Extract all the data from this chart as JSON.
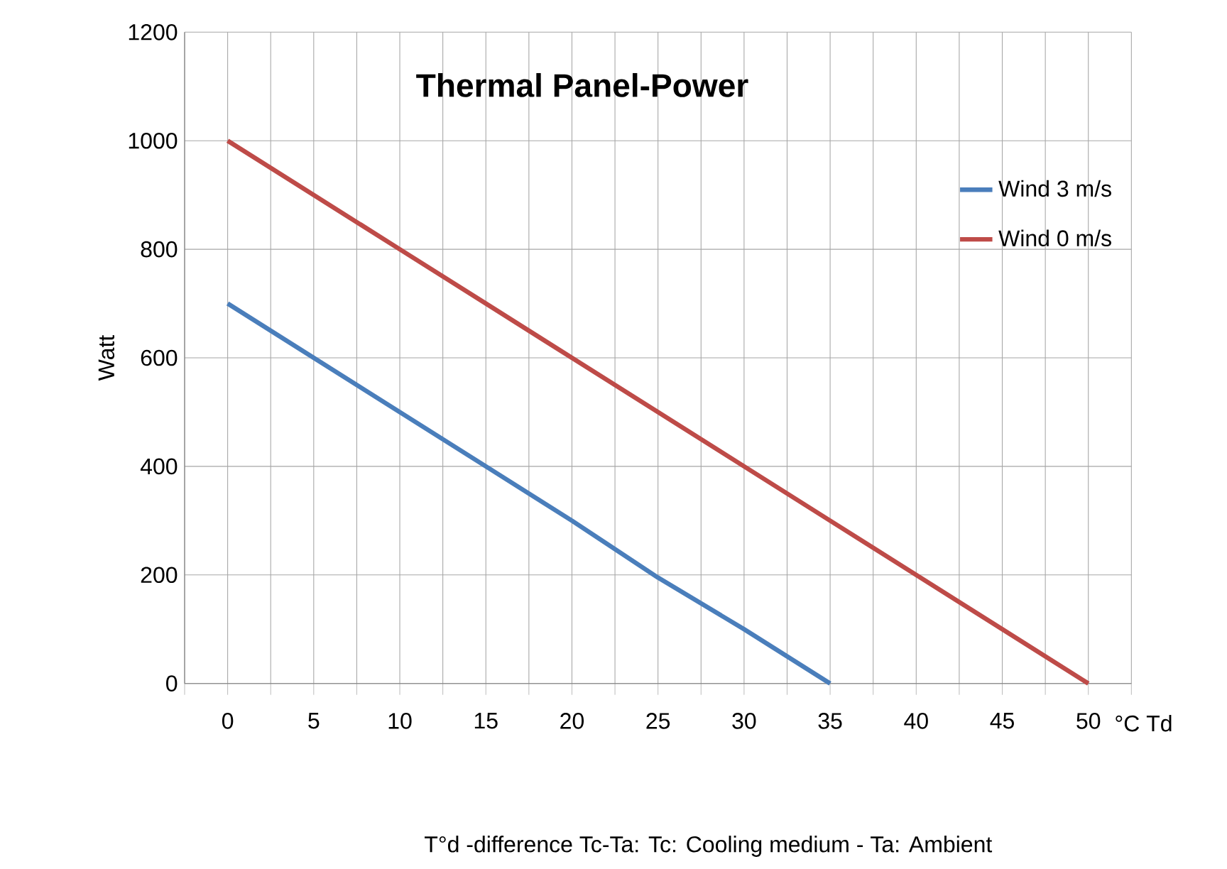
{
  "chart_data": {
    "type": "line",
    "title": "Thermal Panel-Power",
    "xlabel": "°C Td",
    "ylabel": "Watt",
    "annotations": [
      "T°d -difference Tc-Ta: Tc: Cooling medium  - Ta: Ambient"
    ],
    "xlim": [
      -2.5,
      52.5
    ],
    "ylim": [
      0,
      1200
    ],
    "xticks": [
      {
        "value": -2.5,
        "label": null
      },
      0,
      {
        "value": 2.5,
        "label": null
      },
      5,
      {
        "value": 7.5,
        "label": null
      },
      10,
      {
        "value": 12.5,
        "label": null
      },
      15,
      {
        "value": 17.5,
        "label": null
      },
      20,
      {
        "value": 22.5,
        "label": null
      },
      25,
      {
        "value": 27.5,
        "label": null
      },
      30,
      {
        "value": 32.5,
        "label": null
      },
      35,
      {
        "value": 37.5,
        "label": null
      },
      40,
      {
        "value": 42.5,
        "label": null
      },
      45,
      {
        "value": 47.5,
        "label": null
      },
      50,
      {
        "value": 52.5,
        "label": null
      }
    ],
    "yticks": [
      0,
      200,
      400,
      600,
      800,
      1000,
      1200
    ],
    "grid": true,
    "legend": "right",
    "series": [
      {
        "name": "Wind 3 m/s",
        "color": "#4a7ebb",
        "x": [
          0,
          5,
          10,
          15,
          20,
          25,
          30,
          35
        ],
        "values": [
          700,
          600,
          500,
          400,
          300,
          195,
          100,
          0
        ]
      },
      {
        "name": "Wind 0 m/s",
        "color": "#be4b48",
        "x": [
          0,
          5,
          10,
          15,
          20,
          25,
          30,
          35,
          40,
          45,
          50
        ],
        "values": [
          1000,
          900,
          800,
          700,
          600,
          500,
          400,
          300,
          200,
          100,
          0
        ]
      }
    ]
  }
}
